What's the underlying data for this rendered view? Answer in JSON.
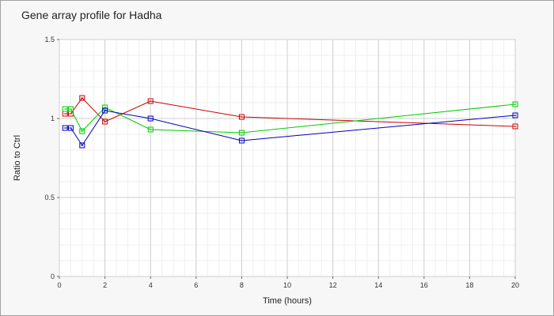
{
  "chart_data": {
    "type": "line",
    "title": "Gene array profile for Hadha",
    "xlabel": "Time (hours)",
    "ylabel": "Ratio to Ctrl",
    "xlim": [
      0,
      20
    ],
    "ylim": [
      0,
      1.5
    ],
    "x_ticks": [
      "0",
      "2",
      "4",
      "6",
      "8",
      "10",
      "12",
      "14",
      "16",
      "18",
      "20"
    ],
    "y_ticks": [
      "0",
      "0.5",
      "1",
      "1.5"
    ],
    "grid": true,
    "marker": "square",
    "series": [
      {
        "color": "#cc0000",
        "x": [
          0.25,
          0.5,
          1,
          2,
          4,
          8,
          20
        ],
        "y": [
          1.03,
          1.03,
          1.13,
          0.98,
          1.11,
          1.01,
          0.95
        ]
      },
      {
        "color": "#00cc00",
        "x": [
          0.25,
          0.5,
          1,
          2,
          4,
          8,
          20
        ],
        "y": [
          1.06,
          1.06,
          0.92,
          1.07,
          0.93,
          0.91,
          1.09
        ]
      },
      {
        "color": "#0000bb",
        "x": [
          0.25,
          0.5,
          1,
          2,
          4,
          8,
          20
        ],
        "y": [
          0.94,
          0.94,
          0.83,
          1.05,
          1.0,
          0.86,
          1.02
        ]
      }
    ]
  }
}
